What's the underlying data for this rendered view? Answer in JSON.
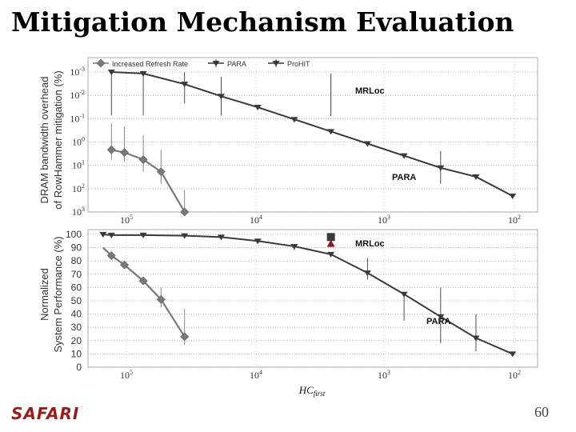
{
  "slide": {
    "title": "Mitigation Mechanism Evaluation",
    "logo": "SAFARI",
    "page_number": "60"
  },
  "colors": {
    "increased_refresh_rate": "#7a7a7a",
    "para": "#3a3a3a",
    "prohit": "#3a3a3a",
    "mrloc_square": "#3a3a3a",
    "mrloc_triangle": "#8b1a1a",
    "logo": "#9b1c1c"
  },
  "chart_data": [
    {
      "type": "line",
      "ylabel": "DRAM bandwidth overhead of RowHammer mitigation (%)",
      "xlabel": "",
      "x_scale": "log",
      "x_reversed": true,
      "x_ticks": [
        "10^5",
        "10^4",
        "10^3",
        "10^2"
      ],
      "y_ticks": [
        "10^-3",
        "10^-2",
        "10^-1",
        "10^0",
        "10^1",
        "10^2",
        "10^3"
      ],
      "legend": [
        "Increased Refresh Rate",
        "PARA",
        "ProHIT"
      ],
      "legend_position": "top",
      "grid": true,
      "annotations": [
        "MRLoc",
        "PARA"
      ],
      "series": [
        {
          "name": "Increased Refresh Rate",
          "marker": "diamond",
          "x": [
            128000,
            100000,
            70000,
            50000,
            32000
          ],
          "y": [
            0.7,
            0.6,
            0.4,
            0.2,
            0.02
          ],
          "err_low": [
            0.3,
            0.25,
            0.2,
            0.1,
            0.01
          ],
          "err_high": [
            2.5,
            2.0,
            1.2,
            0.5,
            0.05
          ]
        },
        {
          "name": "PARA",
          "marker": "triangle",
          "x": [
            128000,
            70000,
            32000,
            16000,
            8000,
            4000,
            2000,
            1000,
            500,
            250,
            128,
            64
          ],
          "y": [
            60,
            55,
            30,
            15,
            8,
            4,
            2,
            1,
            0.5,
            0.25,
            0.15,
            0.05
          ],
          "err_low": [
            55,
            50,
            20,
            10,
            0,
            0,
            0,
            0,
            0,
            0.15,
            0,
            0
          ],
          "err_high": [
            60,
            400,
            100,
            30,
            0,
            0,
            0,
            0,
            0,
            0.4,
            0,
            0
          ]
        }
      ],
      "points": [
        {
          "name": "MRLoc",
          "x": 2000,
          "y_low": 0.05,
          "y_high": 800
        }
      ]
    },
    {
      "type": "line",
      "ylabel": "Normalized System Performance (%)",
      "xlabel": "HC_first",
      "x_scale": "log",
      "x_reversed": true,
      "x_ticks": [
        "10^5",
        "10^4",
        "10^3",
        "10^2"
      ],
      "ylim": [
        0,
        100
      ],
      "y_ticks": [
        0,
        10,
        20,
        30,
        40,
        50,
        60,
        70,
        80,
        90,
        100
      ],
      "grid": true,
      "annotations": [
        "MRLoc",
        "PARA"
      ],
      "series": [
        {
          "name": "Increased Refresh Rate",
          "marker": "diamond",
          "x": [
            150000,
            128000,
            100000,
            70000,
            50000,
            32000
          ],
          "y": [
            90,
            84,
            77,
            65,
            51,
            23
          ],
          "err_low": [
            0,
            3,
            2,
            3,
            6,
            6
          ],
          "err_high": [
            0,
            3,
            2,
            3,
            9,
            21
          ]
        },
        {
          "name": "PARA",
          "marker": "triangle",
          "x": [
            150000,
            128000,
            70000,
            32000,
            16000,
            8000,
            4000,
            2000,
            1000,
            500,
            250,
            128,
            64
          ],
          "y": [
            100,
            99.5,
            99.5,
            99,
            98,
            95,
            91,
            85,
            71,
            55,
            38,
            22,
            10
          ],
          "err_low": [
            0,
            0,
            0,
            0,
            0,
            2,
            3,
            0,
            5,
            20,
            20,
            10,
            0
          ],
          "err_high": [
            0,
            0,
            0,
            0,
            0,
            0,
            0,
            0,
            11,
            0,
            22,
            18,
            0
          ]
        }
      ],
      "points": [
        {
          "name": "MRLoc",
          "marker": "square",
          "x": 2000,
          "y": 98
        },
        {
          "name": "MRLoc",
          "marker": "triangle",
          "x": 2000,
          "y": 93
        }
      ]
    }
  ]
}
